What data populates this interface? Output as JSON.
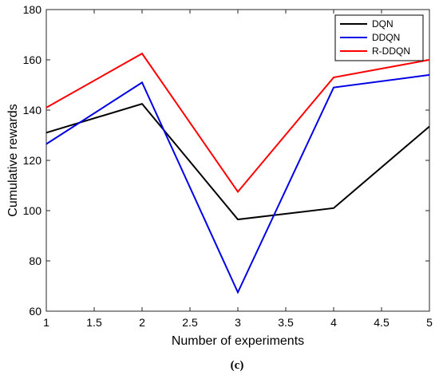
{
  "chart_data": {
    "type": "line",
    "x": [
      1,
      2,
      3,
      4,
      5
    ],
    "series": [
      {
        "name": "DQN",
        "color": "#000000",
        "values": [
          131,
          142.5,
          96.5,
          101,
          133.5
        ]
      },
      {
        "name": "DDQN",
        "color": "#0000e6",
        "values": [
          126.5,
          151,
          67.5,
          149,
          154
        ]
      },
      {
        "name": "R-DDQN",
        "color": "#ff0000",
        "values": [
          141,
          162.5,
          107.5,
          153,
          160
        ]
      }
    ],
    "xlabel": "Number of experiments",
    "ylabel": "Cumulative rewards",
    "xlim": [
      1,
      5
    ],
    "ylim": [
      60,
      180
    ],
    "xticks": [
      1,
      1.5,
      2,
      2.5,
      3,
      3.5,
      4,
      4.5,
      5
    ],
    "xtick_labels": [
      "1",
      "1.5",
      "2",
      "2.5",
      "3",
      "3.5",
      "4",
      "4.5",
      "5"
    ],
    "yticks": [
      60,
      80,
      100,
      120,
      140,
      160,
      180
    ],
    "ytick_labels": [
      "60",
      "80",
      "100",
      "120",
      "140",
      "160",
      "180"
    ],
    "grid": false,
    "legend_position": "top-right",
    "caption": "(c)"
  }
}
